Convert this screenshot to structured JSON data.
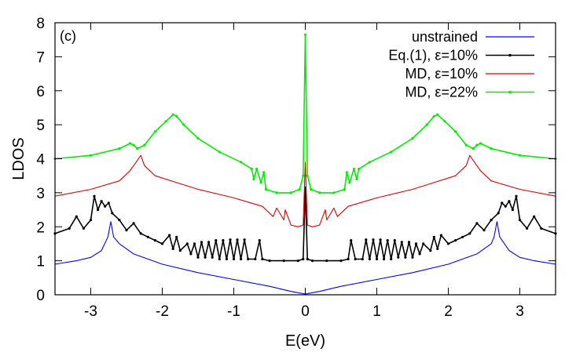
{
  "chart_data": {
    "type": "line",
    "panel_label": "(c)",
    "xlabel": "E(eV)",
    "ylabel": "LDOS",
    "xlim": [
      -3.5,
      3.5
    ],
    "ylim": [
      0,
      8
    ],
    "xticks": [
      -3,
      -2,
      -1,
      0,
      1,
      2,
      3
    ],
    "xtick_labels": [
      "-3",
      "-2",
      "-1",
      "0",
      "1",
      "2",
      "3"
    ],
    "yticks": [
      0,
      1,
      2,
      3,
      4,
      5,
      6,
      7,
      8
    ],
    "ytick_labels": [
      "0",
      "1",
      "2",
      "3",
      "4",
      "5",
      "6",
      "7",
      "8"
    ],
    "grid": false,
    "legend_position": "top-right",
    "series": [
      {
        "name": "unstrained",
        "color": "#0000ff",
        "marker": "none",
        "x": [
          -3.5,
          -3.2,
          -3.0,
          -2.85,
          -2.76,
          -2.72,
          -2.68,
          -2.6,
          -2.4,
          -2.0,
          -1.5,
          -1.0,
          -0.5,
          -0.2,
          0.0,
          0.2,
          0.5,
          1.0,
          1.5,
          2.0,
          2.4,
          2.6,
          2.64,
          2.68,
          2.72,
          2.85,
          3.0,
          3.2,
          3.5
        ],
        "y": [
          0.9,
          1.0,
          1.1,
          1.3,
          1.7,
          2.15,
          1.7,
          1.5,
          1.2,
          0.9,
          0.65,
          0.45,
          0.25,
          0.1,
          0.02,
          0.1,
          0.25,
          0.45,
          0.65,
          0.9,
          1.2,
          1.5,
          1.7,
          2.15,
          1.7,
          1.3,
          1.1,
          1.0,
          0.9
        ]
      },
      {
        "name": "Eq.(1), ε=10%",
        "color": "#000000",
        "marker": "point",
        "x": [
          -3.5,
          -3.3,
          -3.2,
          -3.1,
          -3.0,
          -2.95,
          -2.9,
          -2.85,
          -2.8,
          -2.75,
          -2.7,
          -2.6,
          -2.5,
          -2.4,
          -2.3,
          -2.2,
          -2.1,
          -2.0,
          -1.9,
          -1.85,
          -1.8,
          -1.75,
          -1.65,
          -1.6,
          -1.55,
          -1.5,
          -1.45,
          -1.4,
          -1.35,
          -1.3,
          -1.25,
          -1.2,
          -1.15,
          -1.1,
          -1.05,
          -1.0,
          -0.95,
          -0.9,
          -0.85,
          -0.8,
          -0.7,
          -0.64,
          -0.6,
          -0.5,
          -0.3,
          -0.1,
          -0.03,
          0.0,
          0.03,
          0.1,
          0.3,
          0.5,
          0.6,
          0.64,
          0.7,
          0.8,
          0.85,
          0.9,
          0.95,
          1.0,
          1.05,
          1.1,
          1.15,
          1.2,
          1.25,
          1.3,
          1.35,
          1.4,
          1.45,
          1.5,
          1.55,
          1.6,
          1.65,
          1.75,
          1.8,
          1.85,
          1.9,
          2.0,
          2.1,
          2.2,
          2.3,
          2.4,
          2.5,
          2.6,
          2.7,
          2.75,
          2.8,
          2.85,
          2.9,
          2.95,
          3.0,
          3.1,
          3.2,
          3.3,
          3.5
        ],
        "y": [
          1.8,
          1.95,
          2.3,
          1.95,
          2.2,
          2.9,
          2.5,
          2.75,
          2.6,
          2.7,
          2.4,
          2.2,
          1.9,
          2.1,
          1.8,
          1.7,
          1.6,
          1.5,
          1.75,
          1.35,
          1.7,
          1.3,
          1.5,
          1.2,
          1.5,
          1.1,
          1.55,
          1.1,
          1.55,
          1.1,
          1.6,
          1.05,
          1.6,
          1.05,
          1.62,
          1.05,
          1.62,
          1.05,
          1.62,
          1.05,
          1.05,
          1.6,
          1.05,
          1.0,
          1.0,
          1.0,
          1.05,
          3.15,
          1.05,
          1.0,
          1.0,
          1.0,
          1.05,
          1.6,
          1.05,
          1.05,
          1.62,
          1.05,
          1.62,
          1.05,
          1.62,
          1.05,
          1.6,
          1.05,
          1.6,
          1.1,
          1.55,
          1.1,
          1.55,
          1.1,
          1.5,
          1.2,
          1.5,
          1.3,
          1.7,
          1.35,
          1.75,
          1.5,
          1.6,
          1.7,
          1.8,
          2.1,
          1.9,
          2.2,
          2.4,
          2.7,
          2.6,
          2.75,
          2.5,
          2.9,
          2.2,
          1.95,
          2.3,
          1.95,
          1.8
        ]
      },
      {
        "name": "MD, ε=10%",
        "color": "#dd0000",
        "marker": "none",
        "x": [
          -3.5,
          -3.0,
          -2.6,
          -2.45,
          -2.35,
          -2.3,
          -2.25,
          -2.1,
          -1.8,
          -1.5,
          -1.0,
          -0.6,
          -0.45,
          -0.4,
          -0.3,
          -0.28,
          -0.2,
          -0.1,
          -0.03,
          0.0,
          0.03,
          0.1,
          0.2,
          0.28,
          0.3,
          0.4,
          0.45,
          0.6,
          1.0,
          1.5,
          1.8,
          2.1,
          2.25,
          2.3,
          2.35,
          2.45,
          2.6,
          3.0,
          3.5
        ],
        "y": [
          2.9,
          3.1,
          3.35,
          3.65,
          3.95,
          4.1,
          3.8,
          3.5,
          3.3,
          3.1,
          2.85,
          2.6,
          2.3,
          2.55,
          2.2,
          2.5,
          2.05,
          2.0,
          2.05,
          3.9,
          2.05,
          2.0,
          2.05,
          2.5,
          2.2,
          2.55,
          2.3,
          2.6,
          2.85,
          3.1,
          3.3,
          3.5,
          3.8,
          4.1,
          3.95,
          3.65,
          3.35,
          3.1,
          2.9
        ]
      },
      {
        "name": "MD, ε=22%",
        "color": "#00ee00",
        "marker": "point",
        "x": [
          -3.5,
          -3.0,
          -2.6,
          -2.45,
          -2.4,
          -2.35,
          -2.25,
          -2.1,
          -1.95,
          -1.85,
          -1.8,
          -1.7,
          -1.5,
          -1.2,
          -0.9,
          -0.75,
          -0.72,
          -0.68,
          -0.62,
          -0.58,
          -0.55,
          -0.4,
          -0.2,
          -0.08,
          -0.03,
          0.0,
          0.03,
          0.08,
          0.2,
          0.4,
          0.55,
          0.58,
          0.62,
          0.68,
          0.72,
          0.75,
          0.9,
          1.2,
          1.5,
          1.7,
          1.8,
          1.85,
          1.95,
          2.1,
          2.25,
          2.35,
          2.4,
          2.45,
          2.6,
          3.0,
          3.5
        ],
        "y": [
          4.0,
          4.1,
          4.3,
          4.45,
          4.4,
          4.3,
          4.4,
          4.8,
          5.1,
          5.3,
          5.25,
          5.0,
          4.6,
          4.2,
          3.9,
          3.7,
          3.4,
          3.7,
          3.3,
          3.6,
          3.1,
          3.0,
          3.0,
          3.1,
          3.5,
          7.65,
          3.5,
          3.1,
          3.0,
          3.0,
          3.1,
          3.6,
          3.3,
          3.7,
          3.4,
          3.7,
          3.9,
          4.2,
          4.6,
          5.0,
          5.25,
          5.3,
          5.1,
          4.8,
          4.4,
          4.3,
          4.4,
          4.45,
          4.3,
          4.1,
          4.0
        ]
      }
    ]
  }
}
